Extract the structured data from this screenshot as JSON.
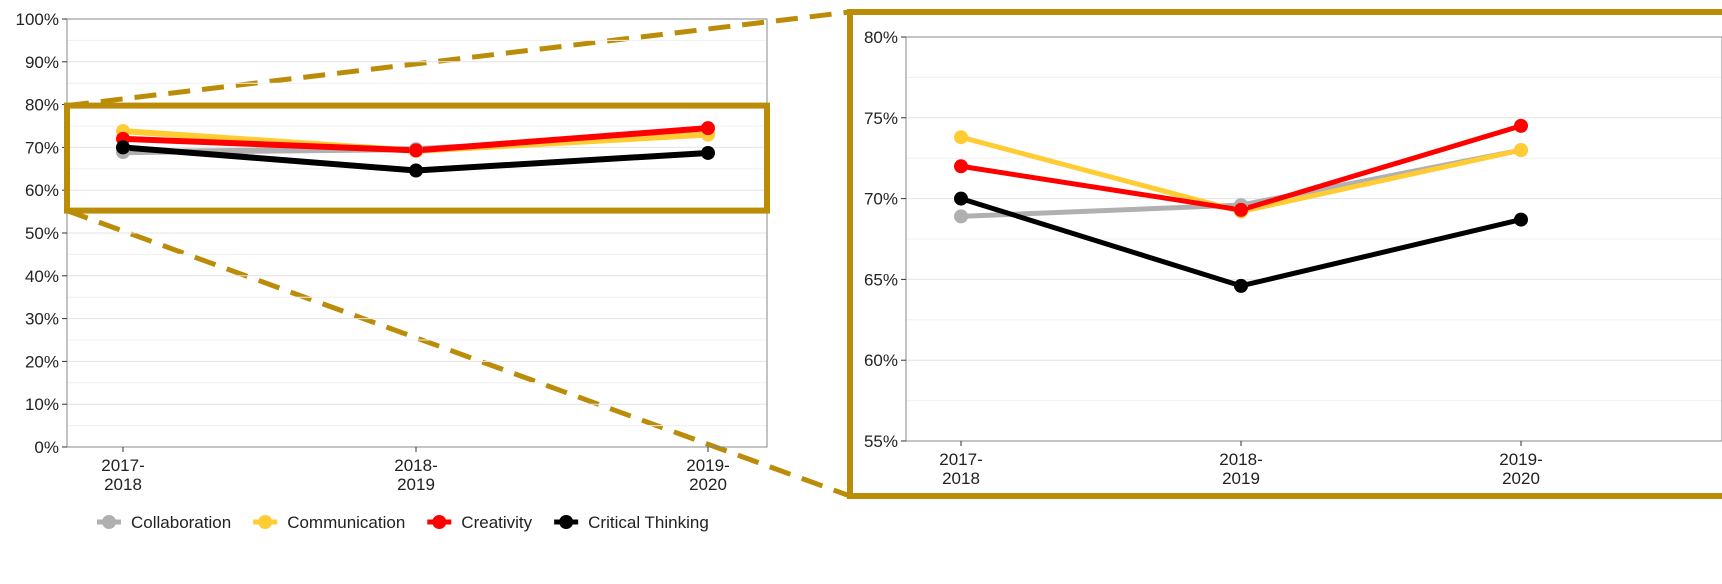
{
  "colors": {
    "accent": "#BA8C07",
    "Collaboration": "#B0B0B0",
    "Communication": "#FFCC33",
    "Creativity": "#FF0000",
    "Critical Thinking": "#000000"
  },
  "chart_data": [
    {
      "type": "line",
      "panel": "overview",
      "categories": [
        "2017-\n2018",
        "2018-\n2019",
        "2019-\n2020"
      ],
      "ylim": [
        0,
        100
      ],
      "y_ticks": [
        "0%",
        "10%",
        "20%",
        "30%",
        "40%",
        "50%",
        "60%",
        "70%",
        "80%",
        "90%",
        "100%"
      ],
      "grid": true,
      "series": [
        {
          "name": "Collaboration",
          "values": [
            68.9,
            69.6,
            73.0
          ]
        },
        {
          "name": "Communication",
          "values": [
            73.8,
            69.2,
            73.0
          ]
        },
        {
          "name": "Creativity",
          "values": [
            72.0,
            69.3,
            74.5
          ]
        },
        {
          "name": "Critical Thinking",
          "values": [
            70.0,
            64.6,
            68.7
          ]
        }
      ],
      "zoom_range": [
        55,
        80
      ],
      "legend": {
        "position": "bottom",
        "entries": [
          "Collaboration",
          "Communication",
          "Creativity",
          "Critical Thinking"
        ]
      }
    },
    {
      "type": "line",
      "panel": "zoomed",
      "categories": [
        "2017-\n2018",
        "2018-\n2019",
        "2019-\n2020"
      ],
      "ylim": [
        55,
        80
      ],
      "y_ticks": [
        "55%",
        "60%",
        "65%",
        "70%",
        "75%",
        "80%"
      ],
      "grid": true,
      "series": [
        {
          "name": "Collaboration",
          "values": [
            68.9,
            69.6,
            73.0
          ]
        },
        {
          "name": "Communication",
          "values": [
            73.8,
            69.2,
            73.0
          ]
        },
        {
          "name": "Creativity",
          "values": [
            72.0,
            69.3,
            74.5
          ]
        },
        {
          "name": "Critical Thinking",
          "values": [
            70.0,
            64.6,
            68.7
          ]
        }
      ]
    }
  ]
}
